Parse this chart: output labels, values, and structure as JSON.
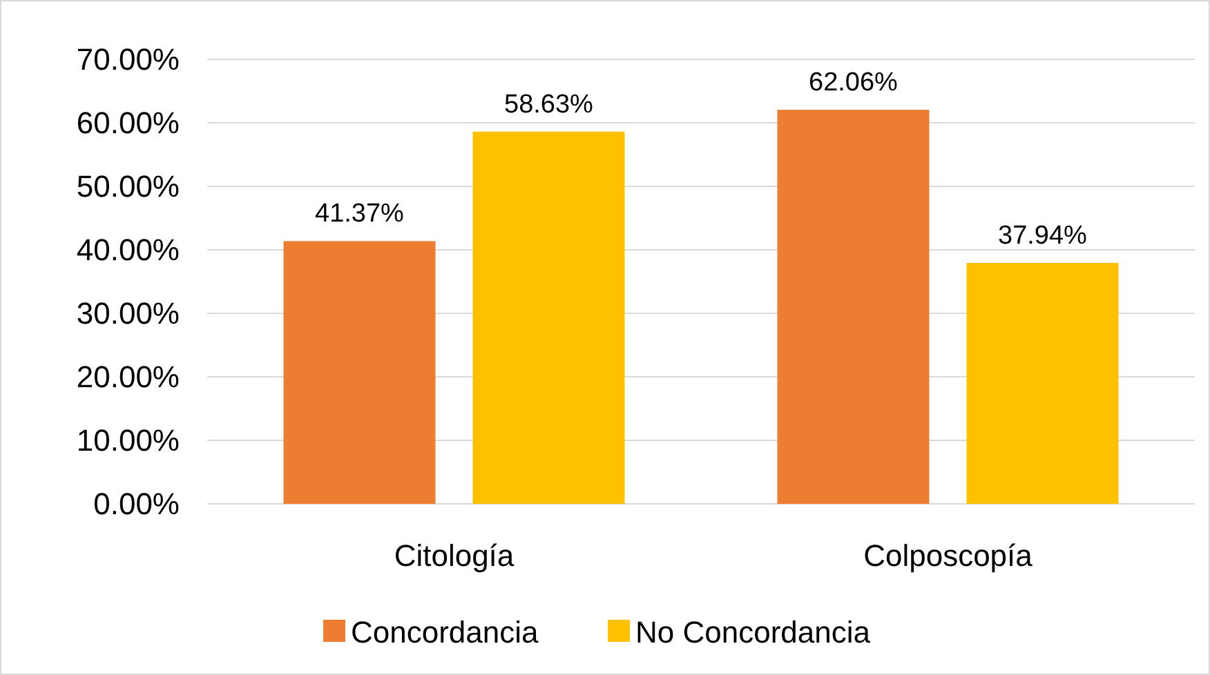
{
  "chart_data": {
    "type": "bar",
    "categories": [
      "Citología",
      "Colposcopía"
    ],
    "series": [
      {
        "name": "Concordancia",
        "color": "#ed7d31",
        "values": [
          41.37,
          62.06
        ],
        "value_labels": [
          "41.37%",
          "62.06%"
        ]
      },
      {
        "name": "No Concordancia",
        "color": "#ffc000",
        "values": [
          58.63,
          37.94
        ],
        "value_labels": [
          "58.63%",
          "37.94%"
        ]
      }
    ],
    "ylim": [
      0,
      70
    ],
    "yticks": [
      {
        "value": 0,
        "label": "0.00%"
      },
      {
        "value": 10,
        "label": "10.00%"
      },
      {
        "value": 20,
        "label": "20.00%"
      },
      {
        "value": 30,
        "label": "30.00%"
      },
      {
        "value": 40,
        "label": "40.00%"
      },
      {
        "value": 50,
        "label": "50.00%"
      },
      {
        "value": 60,
        "label": "60.00%"
      },
      {
        "value": 70,
        "label": "70.00%"
      }
    ],
    "grid": "y",
    "legend": "bottom"
  }
}
